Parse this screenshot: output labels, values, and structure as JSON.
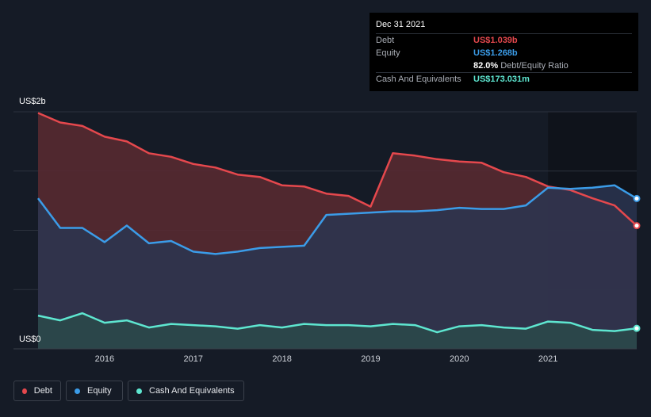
{
  "tooltip": {
    "date": "Dec 31 2021",
    "rows": [
      {
        "label": "Debt",
        "value": "US$1.039b",
        "color": "#e5484d"
      },
      {
        "label": "Equity",
        "value": "US$1.268b",
        "color": "#3b9ce8"
      },
      {
        "label": "",
        "value": "82.0%",
        "suffix": "Debt/Equity Ratio",
        "color": "#ffffff"
      },
      {
        "label": "Cash And Equivalents",
        "value": "US$173.031m",
        "color": "#5ee6d0"
      }
    ]
  },
  "chart_data": {
    "type": "area",
    "ylabel_top": "US$2b",
    "ylabel_bottom": "US$0",
    "ylim": [
      0,
      2.0
    ],
    "xlim": [
      2015.25,
      2022.0
    ],
    "x_ticks": [
      {
        "value": 2016,
        "label": "2016"
      },
      {
        "value": 2017,
        "label": "2017"
      },
      {
        "value": 2018,
        "label": "2018"
      },
      {
        "value": 2019,
        "label": "2019"
      },
      {
        "value": 2020,
        "label": "2020"
      },
      {
        "value": 2021,
        "label": "2021"
      }
    ],
    "series": [
      {
        "name": "Debt",
        "color": "#e5484d",
        "fill": "#5a2a31",
        "points": [
          [
            2015.25,
            1.99
          ],
          [
            2015.5,
            1.91
          ],
          [
            2015.75,
            1.88
          ],
          [
            2016.0,
            1.79
          ],
          [
            2016.25,
            1.75
          ],
          [
            2016.5,
            1.65
          ],
          [
            2016.75,
            1.62
          ],
          [
            2017.0,
            1.56
          ],
          [
            2017.25,
            1.53
          ],
          [
            2017.5,
            1.47
          ],
          [
            2017.75,
            1.45
          ],
          [
            2018.0,
            1.38
          ],
          [
            2018.25,
            1.37
          ],
          [
            2018.5,
            1.31
          ],
          [
            2018.75,
            1.29
          ],
          [
            2019.0,
            1.2
          ],
          [
            2019.25,
            1.65
          ],
          [
            2019.5,
            1.63
          ],
          [
            2019.75,
            1.6
          ],
          [
            2020.0,
            1.58
          ],
          [
            2020.25,
            1.57
          ],
          [
            2020.5,
            1.49
          ],
          [
            2020.75,
            1.45
          ],
          [
            2021.0,
            1.37
          ],
          [
            2021.25,
            1.34
          ],
          [
            2021.5,
            1.27
          ],
          [
            2021.75,
            1.21
          ],
          [
            2022.0,
            1.039
          ]
        ]
      },
      {
        "name": "Equity",
        "color": "#3b9ce8",
        "fill": "#2a3550",
        "points": [
          [
            2015.25,
            1.27
          ],
          [
            2015.5,
            1.02
          ],
          [
            2015.75,
            1.02
          ],
          [
            2016.0,
            0.9
          ],
          [
            2016.25,
            1.04
          ],
          [
            2016.5,
            0.89
          ],
          [
            2016.75,
            0.91
          ],
          [
            2017.0,
            0.82
          ],
          [
            2017.25,
            0.8
          ],
          [
            2017.5,
            0.82
          ],
          [
            2017.75,
            0.85
          ],
          [
            2018.0,
            0.86
          ],
          [
            2018.25,
            0.87
          ],
          [
            2018.5,
            1.13
          ],
          [
            2018.75,
            1.14
          ],
          [
            2019.0,
            1.15
          ],
          [
            2019.25,
            1.16
          ],
          [
            2019.5,
            1.16
          ],
          [
            2019.75,
            1.17
          ],
          [
            2020.0,
            1.19
          ],
          [
            2020.25,
            1.18
          ],
          [
            2020.5,
            1.18
          ],
          [
            2020.75,
            1.21
          ],
          [
            2021.0,
            1.36
          ],
          [
            2021.25,
            1.35
          ],
          [
            2021.5,
            1.36
          ],
          [
            2021.75,
            1.38
          ],
          [
            2022.0,
            1.268
          ]
        ]
      },
      {
        "name": "Cash And Equivalents",
        "color": "#5ee6d0",
        "fill": "#2a4a4a",
        "points": [
          [
            2015.25,
            0.28
          ],
          [
            2015.5,
            0.24
          ],
          [
            2015.75,
            0.3
          ],
          [
            2016.0,
            0.22
          ],
          [
            2016.25,
            0.24
          ],
          [
            2016.5,
            0.18
          ],
          [
            2016.75,
            0.21
          ],
          [
            2017.0,
            0.2
          ],
          [
            2017.25,
            0.19
          ],
          [
            2017.5,
            0.17
          ],
          [
            2017.75,
            0.2
          ],
          [
            2018.0,
            0.18
          ],
          [
            2018.25,
            0.21
          ],
          [
            2018.5,
            0.2
          ],
          [
            2018.75,
            0.2
          ],
          [
            2019.0,
            0.19
          ],
          [
            2019.25,
            0.21
          ],
          [
            2019.5,
            0.2
          ],
          [
            2019.75,
            0.14
          ],
          [
            2020.0,
            0.19
          ],
          [
            2020.25,
            0.2
          ],
          [
            2020.5,
            0.18
          ],
          [
            2020.75,
            0.17
          ],
          [
            2021.0,
            0.23
          ],
          [
            2021.25,
            0.22
          ],
          [
            2021.5,
            0.16
          ],
          [
            2021.75,
            0.15
          ],
          [
            2022.0,
            0.173
          ]
        ]
      }
    ],
    "highlight_band": {
      "from": 2021.0,
      "to": 2022.0,
      "color": "#0f131b"
    }
  },
  "legend": [
    {
      "label": "Debt",
      "color": "#e5484d"
    },
    {
      "label": "Equity",
      "color": "#3b9ce8"
    },
    {
      "label": "Cash And Equivalents",
      "color": "#5ee6d0"
    }
  ]
}
